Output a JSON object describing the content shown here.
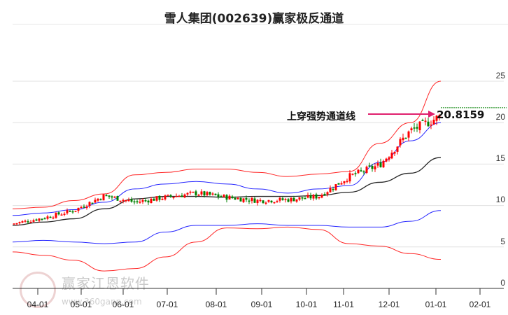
{
  "title": "雪人集团(002639)赢家极反通道",
  "annotation": {
    "label": "上穿强势通道线",
    "value": "20.8159",
    "arrow_color": "#e0206e"
  },
  "watermark": {
    "text": "赢家江恩软件",
    "url": "www.360gann.com",
    "logo_text": "江赢恩家"
  },
  "colors": {
    "up": "#ff0000",
    "down": "#008000",
    "upper_band": "#ff0000",
    "mid_band": "#0000ff",
    "ma": "#000000",
    "ref_line": "#008000",
    "grid": "#e0e0e0"
  },
  "chart_data": {
    "type": "candlestick",
    "title": "雪人集团(002639)赢家极反通道",
    "xlabel": "",
    "ylabel": "",
    "ylim": [
      0,
      25
    ],
    "yticks": [
      0,
      5,
      10,
      15,
      20,
      25
    ],
    "xticks": [
      "04-01",
      "05-01",
      "06-01",
      "07-01",
      "08-01",
      "09-01",
      "10-01",
      "11-01",
      "12-01",
      "01-01",
      "02-01"
    ],
    "grid": true,
    "annotations": [
      {
        "text": "上穿强势通道线",
        "value": 20.8159
      }
    ],
    "series": [
      {
        "name": "upper_outer_band",
        "color": "#ff0000",
        "values": [
          9.6,
          9.8,
          10.6,
          11.4,
          13.7,
          14.0,
          14.4,
          14.4,
          14.0,
          13.5,
          13.8,
          14.1,
          17.5,
          20.0,
          25.0
        ]
      },
      {
        "name": "upper_inner_band",
        "color": "#0000ff",
        "values": [
          8.8,
          9.1,
          9.5,
          10.4,
          12.0,
          12.6,
          12.9,
          12.6,
          12.0,
          11.5,
          12.0,
          12.4,
          15.2,
          17.8,
          20.0
        ]
      },
      {
        "name": "moving_average",
        "color": "#000000",
        "values": [
          7.6,
          8.0,
          8.4,
          9.6,
          10.8,
          11.1,
          11.1,
          11.0,
          11.1,
          11.1,
          11.2,
          11.6,
          12.8,
          13.9,
          15.8
        ]
      },
      {
        "name": "lower_inner_band",
        "color": "#0000ff",
        "values": [
          5.6,
          5.8,
          5.6,
          5.4,
          5.6,
          6.8,
          7.6,
          7.6,
          7.8,
          7.6,
          7.6,
          7.4,
          7.4,
          8.1,
          9.4
        ]
      },
      {
        "name": "lower_outer_band",
        "color": "#ff0000",
        "values": [
          4.4,
          4.0,
          3.4,
          2.1,
          2.4,
          3.8,
          5.6,
          7.3,
          7.2,
          7.4,
          7.1,
          5.4,
          5.1,
          4.2,
          3.5
        ]
      },
      {
        "name": "close",
        "color": "#ff0000",
        "values": [
          7.8,
          8.5,
          9.4,
          11.2,
          10.4,
          11.0,
          11.5,
          11.0,
          10.6,
          10.7,
          11.1,
          13.5,
          14.9,
          19.0,
          20.8
        ]
      }
    ],
    "last_close": 20.8159
  }
}
